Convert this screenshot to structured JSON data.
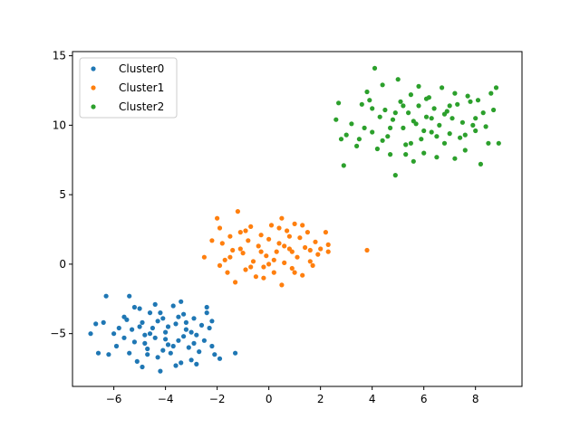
{
  "chart_data": {
    "type": "scatter",
    "title": "",
    "xlabel": "",
    "ylabel": "",
    "xlim": [
      -7.6,
      9.8
    ],
    "ylim": [
      -8.8,
      15.3
    ],
    "xticks": [
      -6,
      -4,
      -2,
      0,
      2,
      4,
      6,
      8
    ],
    "yticks": [
      -5,
      0,
      5,
      10,
      15
    ],
    "grid": false,
    "legend_position": "upper-left",
    "series": [
      {
        "name": "Cluster0",
        "color": "#1f77b4",
        "points": [
          [
            -6.6,
            -6.4
          ],
          [
            -6.3,
            -2.3
          ],
          [
            -6.7,
            -4.3
          ],
          [
            -6.9,
            -5.0
          ],
          [
            -6.2,
            -6.5
          ],
          [
            -6.0,
            -5.0
          ],
          [
            -5.9,
            -5.9
          ],
          [
            -5.6,
            -3.8
          ],
          [
            -5.4,
            -2.3
          ],
          [
            -5.5,
            -4.0
          ],
          [
            -5.3,
            -4.7
          ],
          [
            -5.2,
            -5.6
          ],
          [
            -5.4,
            -6.4
          ],
          [
            -5.1,
            -7.0
          ],
          [
            -5.0,
            -3.2
          ],
          [
            -4.9,
            -4.2
          ],
          [
            -4.8,
            -5.1
          ],
          [
            -4.7,
            -6.1
          ],
          [
            -4.6,
            -3.5
          ],
          [
            -4.5,
            -4.6
          ],
          [
            -4.4,
            -5.3
          ],
          [
            -4.3,
            -6.7
          ],
          [
            -4.2,
            -7.7
          ],
          [
            -4.1,
            -3.9
          ],
          [
            -4.0,
            -4.9
          ],
          [
            -3.9,
            -5.8
          ],
          [
            -3.8,
            -6.4
          ],
          [
            -3.7,
            -3.0
          ],
          [
            -3.6,
            -4.3
          ],
          [
            -3.5,
            -5.5
          ],
          [
            -3.4,
            -7.1
          ],
          [
            -3.3,
            -3.6
          ],
          [
            -3.2,
            -4.7
          ],
          [
            -3.1,
            -6.0
          ],
          [
            -3.0,
            -6.9
          ],
          [
            -2.9,
            -3.9
          ],
          [
            -2.8,
            -5.1
          ],
          [
            -2.7,
            -6.3
          ],
          [
            -2.6,
            -4.4
          ],
          [
            -2.5,
            -5.5
          ],
          [
            -2.4,
            -3.5
          ],
          [
            -2.3,
            -4.6
          ],
          [
            -2.2,
            -5.9
          ],
          [
            -2.1,
            -6.5
          ],
          [
            -1.9,
            -6.8
          ],
          [
            -1.3,
            -6.4
          ],
          [
            -2.4,
            -3.1
          ],
          [
            -3.4,
            -2.7
          ],
          [
            -4.4,
            -2.9
          ],
          [
            -5.2,
            -3.1
          ],
          [
            -5.8,
            -4.6
          ],
          [
            -6.4,
            -4.2
          ],
          [
            -4.9,
            -7.4
          ],
          [
            -3.6,
            -7.3
          ],
          [
            -2.8,
            -7.2
          ],
          [
            -4.1,
            -6.2
          ],
          [
            -4.6,
            -5.0
          ],
          [
            -3.9,
            -4.5
          ],
          [
            -3.3,
            -5.2
          ],
          [
            -4.3,
            -4.1
          ],
          [
            -4.8,
            -5.7
          ],
          [
            -3.7,
            -5.9
          ],
          [
            -3.2,
            -4.2
          ],
          [
            -5.0,
            -4.5
          ],
          [
            -4.0,
            -5.4
          ],
          [
            -3.5,
            -3.8
          ],
          [
            -2.9,
            -5.7
          ],
          [
            -4.2,
            -3.5
          ],
          [
            -5.6,
            -5.3
          ],
          [
            -2.2,
            -4.1
          ],
          [
            -4.7,
            -6.5
          ],
          [
            -3.0,
            -4.9
          ]
        ]
      },
      {
        "name": "Cluster1",
        "color": "#ff7f0e",
        "points": [
          [
            -2.5,
            0.5
          ],
          [
            -2.0,
            3.3
          ],
          [
            -1.9,
            2.6
          ],
          [
            -1.8,
            1.5
          ],
          [
            -1.7,
            0.3
          ],
          [
            -1.6,
            -0.6
          ],
          [
            -1.5,
            2.0
          ],
          [
            -1.4,
            1.0
          ],
          [
            -1.3,
            -1.3
          ],
          [
            -1.2,
            3.8
          ],
          [
            -1.1,
            2.3
          ],
          [
            -1.0,
            0.8
          ],
          [
            -0.9,
            -0.4
          ],
          [
            -0.8,
            1.7
          ],
          [
            -0.7,
            2.7
          ],
          [
            -0.6,
            0.2
          ],
          [
            -0.5,
            -0.9
          ],
          [
            -0.4,
            1.3
          ],
          [
            -0.3,
            2.1
          ],
          [
            -0.2,
            -0.2
          ],
          [
            -0.1,
            0.6
          ],
          [
            0.0,
            1.8
          ],
          [
            0.1,
            2.8
          ],
          [
            0.2,
            -0.6
          ],
          [
            0.3,
            0.9
          ],
          [
            0.4,
            1.5
          ],
          [
            0.5,
            3.3
          ],
          [
            0.5,
            -1.5
          ],
          [
            0.6,
            0.1
          ],
          [
            0.7,
            2.4
          ],
          [
            0.8,
            1.1
          ],
          [
            0.9,
            -0.3
          ],
          [
            1.0,
            2.9
          ],
          [
            1.1,
            0.5
          ],
          [
            1.2,
            1.9
          ],
          [
            1.3,
            -0.8
          ],
          [
            1.4,
            1.2
          ],
          [
            1.5,
            2.3
          ],
          [
            1.6,
            0.2
          ],
          [
            1.7,
            -0.1
          ],
          [
            1.8,
            1.6
          ],
          [
            1.9,
            0.7
          ],
          [
            2.0,
            1.1
          ],
          [
            2.2,
            2.3
          ],
          [
            2.3,
            0.9
          ],
          [
            2.3,
            1.4
          ],
          [
            3.8,
            1.0
          ],
          [
            -1.1,
            1.1
          ],
          [
            -0.7,
            -0.2
          ],
          [
            0.2,
            0.3
          ],
          [
            0.8,
            2.0
          ],
          [
            -0.3,
            0.9
          ],
          [
            0.6,
            1.3
          ],
          [
            -1.5,
            0.5
          ],
          [
            1.3,
            2.8
          ],
          [
            -0.9,
            2.4
          ],
          [
            0.0,
            0.0
          ],
          [
            1.6,
            1.0
          ],
          [
            -2.2,
            1.7
          ],
          [
            0.4,
            2.6
          ],
          [
            -0.2,
            -1.0
          ],
          [
            1.0,
            -0.6
          ],
          [
            -1.9,
            -0.1
          ],
          [
            0.9,
            0.9
          ]
        ]
      },
      {
        "name": "Cluster2",
        "color": "#2ca02c",
        "points": [
          [
            2.6,
            10.4
          ],
          [
            2.7,
            11.6
          ],
          [
            2.8,
            9.0
          ],
          [
            2.9,
            7.1
          ],
          [
            3.0,
            9.3
          ],
          [
            3.2,
            10.1
          ],
          [
            3.4,
            8.5
          ],
          [
            3.6,
            11.5
          ],
          [
            3.7,
            9.8
          ],
          [
            3.8,
            12.4
          ],
          [
            3.9,
            11.8
          ],
          [
            4.0,
            9.5
          ],
          [
            4.1,
            14.1
          ],
          [
            4.2,
            8.3
          ],
          [
            4.3,
            10.6
          ],
          [
            4.4,
            12.9
          ],
          [
            4.5,
            11.1
          ],
          [
            4.6,
            9.2
          ],
          [
            4.7,
            7.9
          ],
          [
            4.8,
            10.4
          ],
          [
            4.9,
            6.4
          ],
          [
            5.0,
            13.3
          ],
          [
            5.1,
            11.7
          ],
          [
            5.2,
            9.8
          ],
          [
            5.3,
            8.6
          ],
          [
            5.4,
            10.9
          ],
          [
            5.5,
            12.2
          ],
          [
            5.6,
            7.4
          ],
          [
            5.7,
            10.1
          ],
          [
            5.8,
            11.4
          ],
          [
            5.9,
            9.0
          ],
          [
            6.0,
            8.0
          ],
          [
            6.1,
            10.6
          ],
          [
            6.2,
            12.0
          ],
          [
            6.3,
            9.5
          ],
          [
            6.4,
            11.2
          ],
          [
            6.5,
            7.7
          ],
          [
            6.6,
            10.0
          ],
          [
            6.7,
            12.7
          ],
          [
            6.8,
            8.7
          ],
          [
            6.9,
            11.0
          ],
          [
            7.0,
            9.4
          ],
          [
            7.1,
            10.5
          ],
          [
            7.2,
            7.6
          ],
          [
            7.3,
            11.5
          ],
          [
            7.4,
            9.1
          ],
          [
            7.5,
            10.2
          ],
          [
            7.6,
            8.2
          ],
          [
            7.7,
            12.1
          ],
          [
            7.8,
            11.7
          ],
          [
            7.9,
            10.0
          ],
          [
            8.0,
            9.6
          ],
          [
            8.1,
            11.8
          ],
          [
            8.2,
            7.2
          ],
          [
            8.3,
            10.9
          ],
          [
            8.4,
            9.9
          ],
          [
            8.5,
            8.7
          ],
          [
            8.6,
            12.3
          ],
          [
            8.7,
            11.1
          ],
          [
            8.8,
            12.7
          ],
          [
            8.9,
            8.7
          ],
          [
            5.6,
            10.3
          ],
          [
            6.3,
            10.5
          ],
          [
            5.2,
            11.4
          ],
          [
            4.7,
            9.8
          ],
          [
            7.0,
            11.4
          ],
          [
            6.0,
            9.6
          ],
          [
            5.5,
            8.7
          ],
          [
            6.8,
            10.8
          ],
          [
            4.4,
            8.9
          ],
          [
            7.6,
            9.3
          ],
          [
            5.8,
            12.8
          ],
          [
            6.5,
            9.2
          ],
          [
            4.9,
            10.9
          ],
          [
            7.2,
            12.3
          ],
          [
            3.5,
            9.0
          ],
          [
            5.3,
            7.9
          ],
          [
            6.1,
            11.9
          ],
          [
            8.0,
            10.5
          ],
          [
            4.0,
            11.2
          ]
        ]
      }
    ]
  }
}
